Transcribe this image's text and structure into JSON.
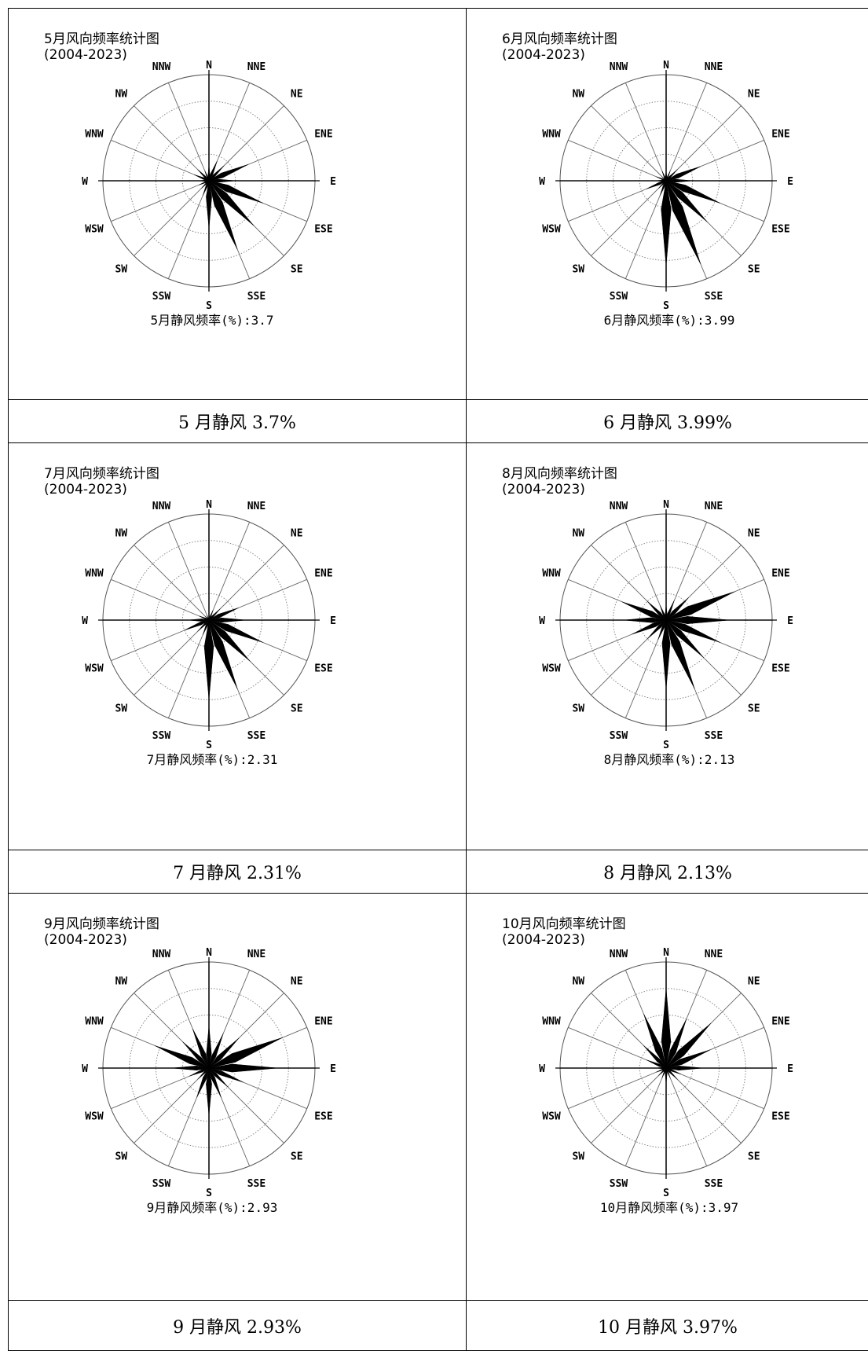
{
  "chart_data": [
    {
      "type": "windrose",
      "title": "5月风向频率统计图",
      "subtitle": "(2004-2023)",
      "directions": [
        "N",
        "NNE",
        "NE",
        "ENE",
        "E",
        "ESE",
        "SE",
        "SSE",
        "S",
        "SSW",
        "SW",
        "WSW",
        "W",
        "WNW",
        "NW",
        "NNW"
      ],
      "values": [
        3,
        4,
        4,
        8,
        5,
        11,
        12,
        14,
        9,
        3,
        2,
        2,
        2,
        3,
        3,
        2
      ],
      "calm_label": "5月静风频率(%):3.7",
      "caption": "5 月静风 3.7%"
    },
    {
      "type": "windrose",
      "title": "6月风向频率统计图",
      "subtitle": "(2004-2023)",
      "directions": [
        "N",
        "NNE",
        "NE",
        "ENE",
        "E",
        "ESE",
        "SE",
        "SSE",
        "S",
        "SSW",
        "SW",
        "WSW",
        "W",
        "WNW",
        "NW",
        "NNW"
      ],
      "values": [
        2,
        2,
        3,
        7,
        5,
        11,
        11,
        17,
        16,
        3,
        2,
        4,
        2,
        2,
        1,
        2
      ],
      "calm_label": "6月静风频率(%):3.99",
      "caption": "6 月静风 3.99%"
    },
    {
      "type": "windrose",
      "title": "7月风向频率统计图",
      "subtitle": "(2004-2023)",
      "directions": [
        "N",
        "NNE",
        "NE",
        "ENE",
        "E",
        "ESE",
        "SE",
        "SSE",
        "S",
        "SSW",
        "SW",
        "WSW",
        "W",
        "WNW",
        "NW",
        "NNW"
      ],
      "values": [
        1,
        2,
        3,
        6,
        7,
        11,
        11,
        14,
        15,
        3,
        3,
        5,
        4,
        2,
        1,
        1
      ],
      "calm_label": "7月静风频率(%):2.31",
      "caption": "7 月静风 2.31%"
    },
    {
      "type": "windrose",
      "title": "8月风向频率统计图",
      "subtitle": "(2004-2023)",
      "directions": [
        "N",
        "NNE",
        "NE",
        "ENE",
        "E",
        "ESE",
        "SE",
        "SSE",
        "S",
        "SSW",
        "SW",
        "WSW",
        "W",
        "WNW",
        "NW",
        "NNW"
      ],
      "values": [
        3,
        4,
        6,
        14,
        12,
        11,
        10,
        14,
        13,
        4,
        5,
        7,
        8,
        9,
        5,
        3
      ],
      "calm_label": "8月静风频率(%):2.13",
      "caption": "8 月静风 2.13%"
    },
    {
      "type": "windrose",
      "title": "9月风向频率统计图",
      "subtitle": "(2004-2023)",
      "directions": [
        "N",
        "NNE",
        "NE",
        "ENE",
        "E",
        "ESE",
        "SE",
        "SSE",
        "S",
        "SSW",
        "SW",
        "WSW",
        "W",
        "WNW",
        "NW",
        "NNW"
      ],
      "values": [
        8,
        7,
        8,
        15,
        13,
        7,
        5,
        6,
        9,
        6,
        3,
        4,
        7,
        11,
        7,
        8
      ],
      "calm_label": "9月静风频率(%):2.93",
      "caption": "9 月静风 2.93%"
    },
    {
      "type": "windrose",
      "title": "10月风向频率统计图",
      "subtitle": "(2004-2023)",
      "directions": [
        "N",
        "NNE",
        "NE",
        "ENE",
        "E",
        "ESE",
        "SE",
        "SSE",
        "S",
        "SSW",
        "SW",
        "WSW",
        "W",
        "WNW",
        "NW",
        "NNW"
      ],
      "values": [
        15,
        10,
        12,
        9,
        7,
        3,
        3,
        2,
        3,
        2,
        2,
        2,
        2,
        4,
        6,
        11
      ],
      "calm_label": "10月静风频率(%):3.97",
      "caption": "10 月静风 3.97%"
    }
  ]
}
